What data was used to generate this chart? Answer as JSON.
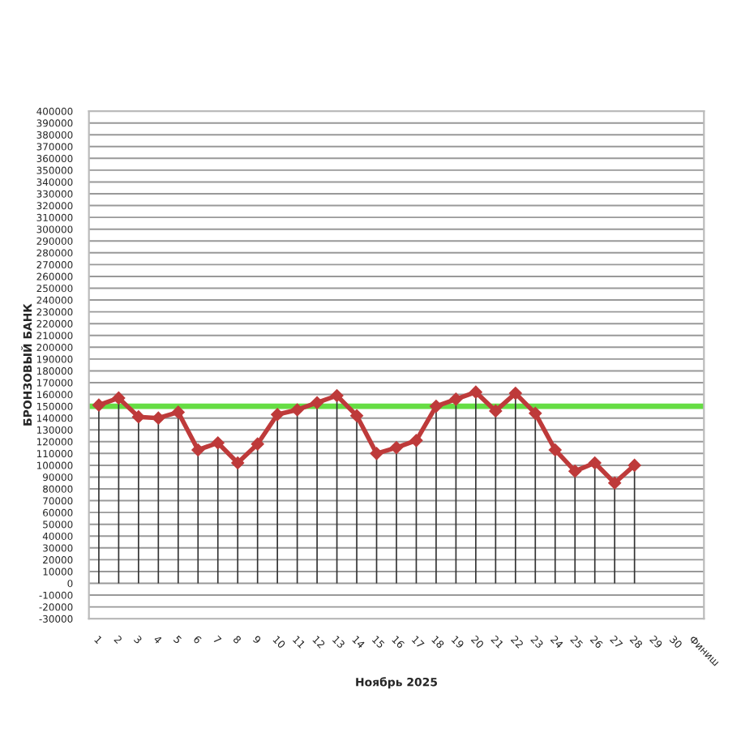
{
  "chart_data": {
    "type": "line",
    "xlabel": "Ноябрь 2025",
    "ylabel": "БРОНЗОВЫЙ БАНК",
    "categories": [
      "1",
      "2",
      "3",
      "4",
      "5",
      "6",
      "7",
      "8",
      "9",
      "10",
      "11",
      "12",
      "13",
      "14",
      "15",
      "16",
      "17",
      "18",
      "19",
      "20",
      "21",
      "22",
      "23",
      "24",
      "25",
      "26",
      "27",
      "28",
      "29",
      "30",
      "Финиш"
    ],
    "series": [
      {
        "color": "#be3a3a",
        "values": [
          151000,
          157000,
          141000,
          140000,
          145000,
          113000,
          119000,
          102000,
          118000,
          143000,
          147000,
          153000,
          159000,
          142000,
          110000,
          115000,
          121000,
          150000,
          156000,
          162000,
          146000,
          161000,
          144000,
          113000,
          95000,
          102000,
          85000,
          100000,
          null,
          null,
          null
        ],
        "errors": [
          [
            0,
            151000
          ],
          [
            0,
            157000
          ],
          [
            0,
            141000
          ],
          [
            0,
            140000
          ],
          [
            0,
            145000
          ],
          [
            0,
            113000
          ],
          [
            0,
            119000
          ],
          [
            0,
            102000
          ],
          [
            0,
            118000
          ],
          [
            0,
            143000
          ],
          [
            0,
            147000
          ],
          [
            0,
            153000
          ],
          [
            0,
            159000
          ],
          [
            0,
            142000
          ],
          [
            0,
            110000
          ],
          [
            0,
            115000
          ],
          [
            0,
            121000
          ],
          [
            0,
            150000
          ],
          [
            0,
            156000
          ],
          [
            0,
            162000
          ],
          [
            0,
            146000
          ],
          [
            0,
            161000
          ],
          [
            0,
            144000
          ],
          [
            0,
            113000
          ],
          [
            0,
            95000
          ],
          [
            0,
            102000
          ],
          [
            0,
            85000
          ],
          [
            0,
            100000
          ],
          null,
          null,
          null
        ]
      }
    ],
    "ylim": [
      -30000,
      400000
    ],
    "yticks": [
      -30000,
      -20000,
      -10000,
      0,
      10000,
      20000,
      30000,
      40000,
      50000,
      60000,
      70000,
      80000,
      90000,
      100000,
      110000,
      120000,
      130000,
      140000,
      150000,
      160000,
      170000,
      180000,
      190000,
      200000,
      210000,
      220000,
      230000,
      240000,
      250000,
      260000,
      270000,
      280000,
      290000,
      300000,
      310000,
      320000,
      330000,
      340000,
      350000,
      360000,
      370000,
      380000,
      390000,
      400000
    ],
    "ref_lines": [
      {
        "axis": "y",
        "value": 150000,
        "color": "#66dd44",
        "line_style": "solid"
      }
    ],
    "grid": "y",
    "marker": "diamond",
    "line_style": "solid"
  }
}
